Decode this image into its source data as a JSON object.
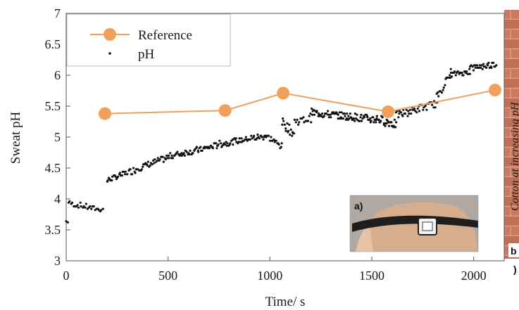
{
  "chart_data": {
    "type": "scatter",
    "title": "",
    "xlabel": "Time/ s",
    "ylabel": "Sweat pH",
    "xlim": [
      0,
      2150
    ],
    "ylim": [
      3,
      7
    ],
    "x_ticks": [
      "0",
      "500",
      "1000",
      "1500",
      "2000"
    ],
    "y_ticks": [
      "3",
      "3.5",
      "4",
      "4.5",
      "5",
      "5.5",
      "6",
      "6.5",
      "7"
    ],
    "grid": false,
    "legend_position": "top-left",
    "series": [
      {
        "name": "Reference",
        "style": "line-with-markers",
        "color": "#f0a05a",
        "points": [
          [
            190,
            5.38
          ],
          [
            780,
            5.43
          ],
          [
            1065,
            5.71
          ],
          [
            1580,
            5.41
          ],
          [
            2105,
            5.76
          ]
        ]
      },
      {
        "name": "pH",
        "style": "points",
        "color": "#111111",
        "segments": [
          {
            "x_start": 0,
            "x_end": 10,
            "y_start": 3.63,
            "y_end": 3.63,
            "noise": 0.02,
            "count": 2
          },
          {
            "x_start": 12,
            "x_end": 180,
            "y_start": 3.93,
            "y_end": 3.82,
            "noise": 0.04,
            "count": 28
          },
          {
            "x_start": 200,
            "x_end": 520,
            "y_start": 4.3,
            "y_end": 4.7,
            "noise": 0.05,
            "count": 70
          },
          {
            "x_start": 520,
            "x_end": 740,
            "y_start": 4.7,
            "y_end": 4.86,
            "noise": 0.05,
            "count": 50
          },
          {
            "x_start": 740,
            "x_end": 980,
            "y_start": 4.88,
            "y_end": 5.02,
            "noise": 0.05,
            "count": 55
          },
          {
            "x_start": 980,
            "x_end": 1060,
            "y_start": 5.02,
            "y_end": 4.85,
            "noise": 0.05,
            "count": 18
          },
          {
            "x_start": 1060,
            "x_end": 1120,
            "y_start": 5.25,
            "y_end": 5.05,
            "noise": 0.08,
            "count": 16
          },
          {
            "x_start": 1120,
            "x_end": 1200,
            "y_start": 5.25,
            "y_end": 5.3,
            "noise": 0.06,
            "count": 14
          },
          {
            "x_start": 1200,
            "x_end": 1520,
            "y_start": 5.4,
            "y_end": 5.28,
            "noise": 0.06,
            "count": 90
          },
          {
            "x_start": 1520,
            "x_end": 1620,
            "y_start": 5.3,
            "y_end": 5.2,
            "noise": 0.07,
            "count": 30
          },
          {
            "x_start": 1620,
            "x_end": 1820,
            "y_start": 5.35,
            "y_end": 5.55,
            "noise": 0.06,
            "count": 45
          },
          {
            "x_start": 1820,
            "x_end": 1890,
            "y_start": 5.65,
            "y_end": 6.05,
            "noise": 0.06,
            "count": 16
          },
          {
            "x_start": 1890,
            "x_end": 1980,
            "y_start": 6.02,
            "y_end": 6.05,
            "noise": 0.04,
            "count": 22
          },
          {
            "x_start": 1980,
            "x_end": 2110,
            "y_start": 6.12,
            "y_end": 6.18,
            "noise": 0.05,
            "count": 30
          }
        ]
      }
    ]
  },
  "inset_a": {
    "label": "a)"
  },
  "side_panel": {
    "rotated_text": "Cotton at increasing pH",
    "label_b": "b",
    "label_paren": ")"
  },
  "colors": {
    "reference": "#f0a05a",
    "brick": "#c2735a",
    "axis": "#555555"
  }
}
